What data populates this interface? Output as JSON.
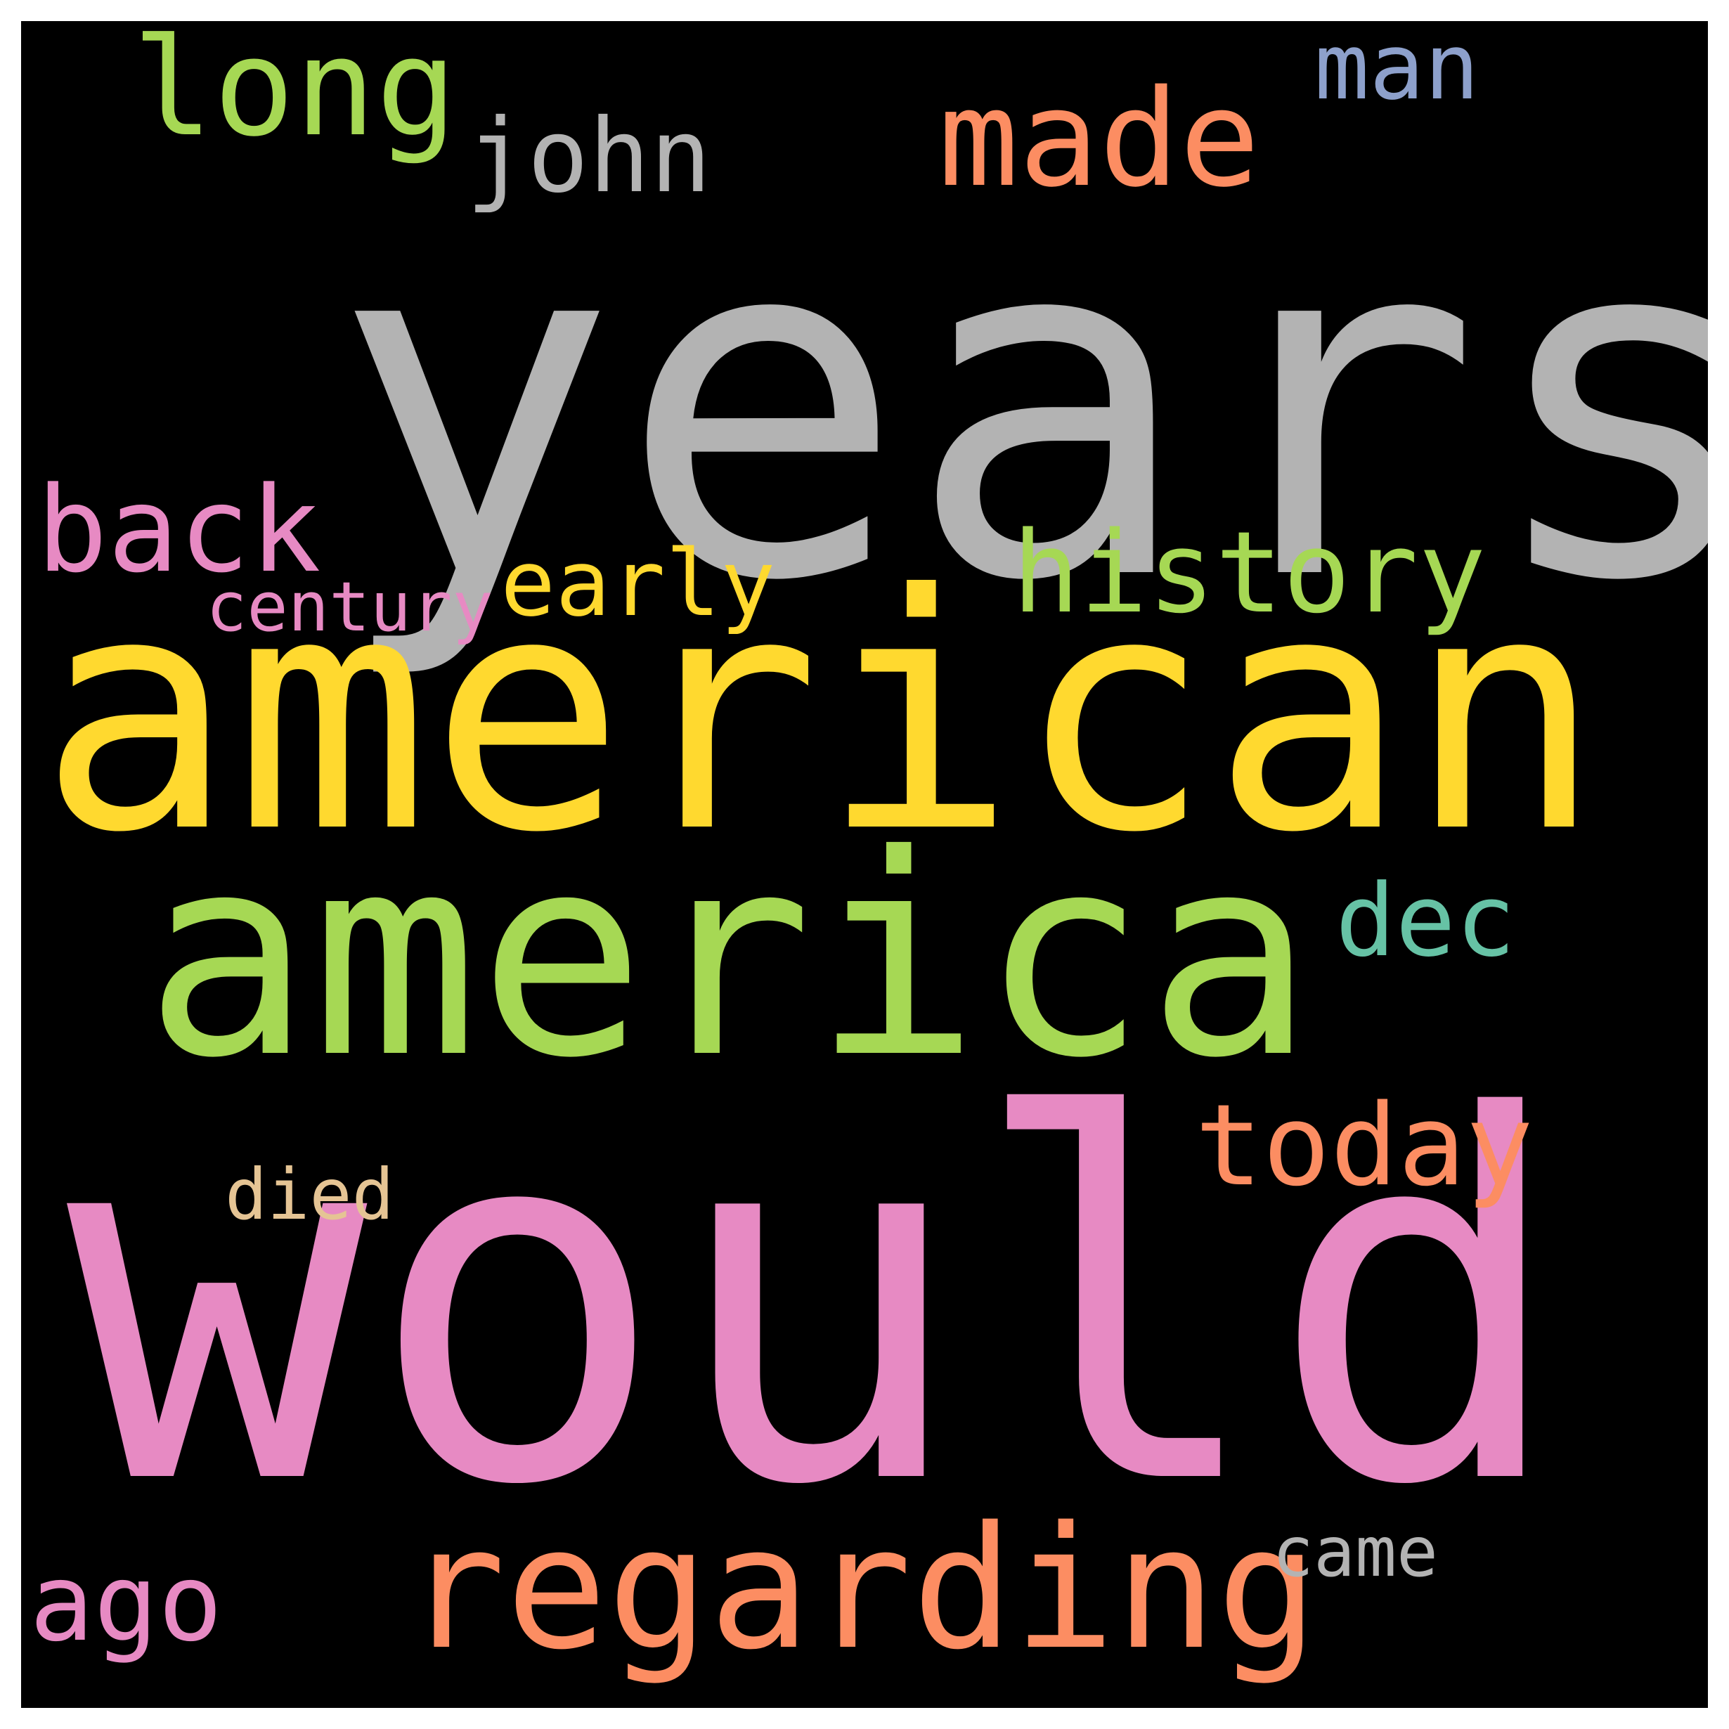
{
  "background": "#000000",
  "words": [
    {
      "text": "years",
      "color": "#b3b3b3"
    },
    {
      "text": "american",
      "color": "#ffd92f"
    },
    {
      "text": "america",
      "color": "#a6d854"
    },
    {
      "text": "would",
      "color": "#e78ac3"
    },
    {
      "text": "regarding",
      "color": "#fc8d62"
    },
    {
      "text": "long",
      "color": "#a6d854"
    },
    {
      "text": "john",
      "color": "#b3b3b3"
    },
    {
      "text": "made",
      "color": "#fc8d62"
    },
    {
      "text": "man",
      "color": "#8da0cb"
    },
    {
      "text": "back",
      "color": "#e78ac3"
    },
    {
      "text": "history",
      "color": "#a6d854"
    },
    {
      "text": "early",
      "color": "#ffd92f"
    },
    {
      "text": "century",
      "color": "#e78ac3"
    },
    {
      "text": "dec",
      "color": "#66c2a5"
    },
    {
      "text": "today",
      "color": "#fc8d62"
    },
    {
      "text": "died",
      "color": "#e5c494"
    },
    {
      "text": "ago",
      "color": "#e78ac3"
    },
    {
      "text": "came",
      "color": "#b3b3b3"
    }
  ]
}
